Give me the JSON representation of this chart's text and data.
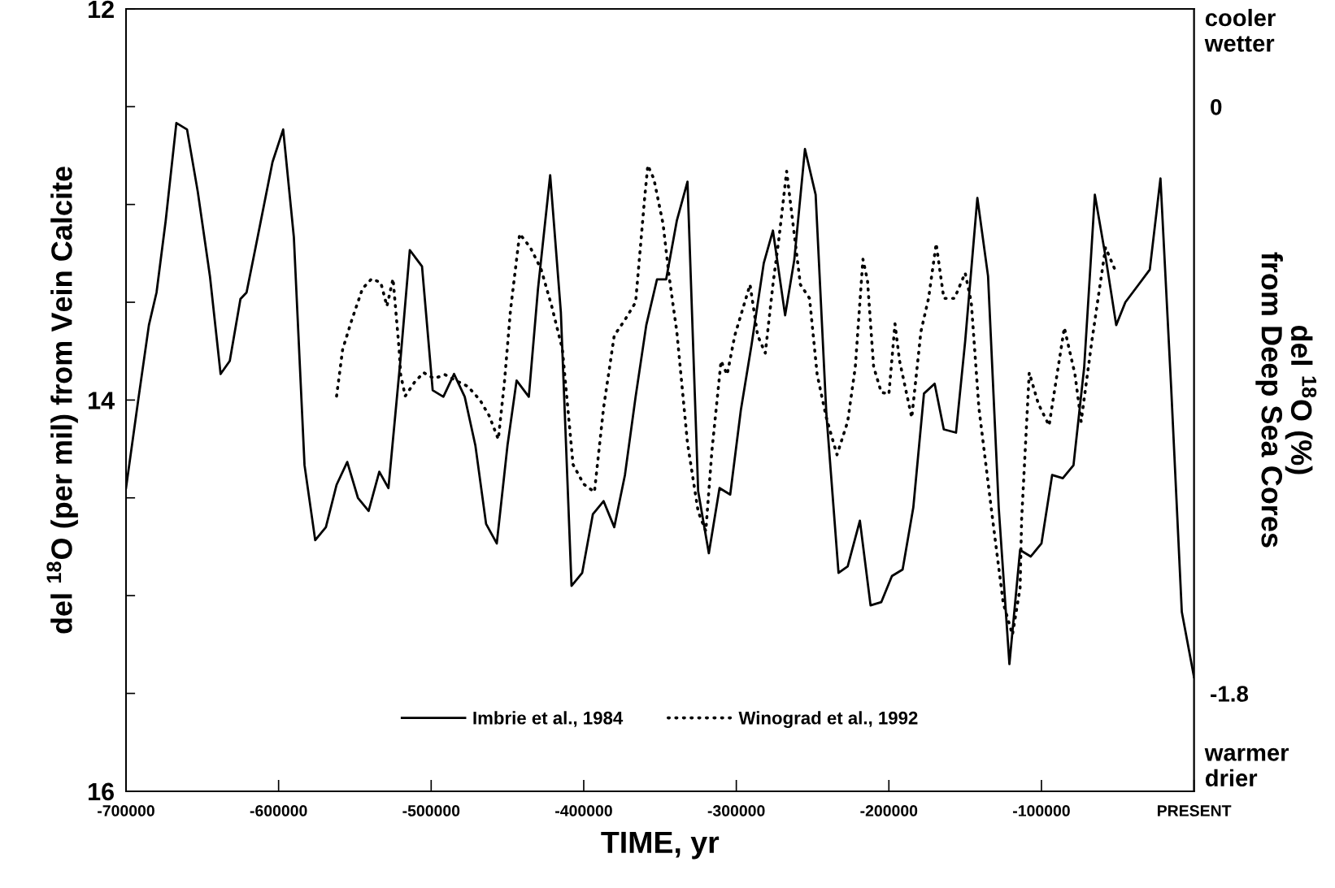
{
  "chart_data": {
    "type": "line",
    "xlabel": "TIME, yr",
    "ylabel": "del $^{18}$O (per mil) from Vein Calcite",
    "y2label": "del $^{18}$O (%)\nfrom Deep Sea Cores",
    "annotations": [
      "cooler\nwetter",
      "warmer\ndrier"
    ],
    "xlim": [
      -700000,
      0
    ],
    "xticks": [
      -700000,
      -600000,
      -500000,
      -400000,
      -300000,
      -200000,
      -100000,
      {
        "value": 0,
        "label": "PRESENT"
      }
    ],
    "ylim": [
      16,
      12
    ],
    "yticks": [
      12,
      {
        "value": 12.5,
        "label": null
      },
      {
        "value": 13,
        "label": null
      },
      {
        "value": 13.5,
        "label": null
      },
      14,
      {
        "value": 14.5,
        "label": null
      },
      {
        "value": 15,
        "label": null
      },
      {
        "value": 15.5,
        "label": null
      },
      16
    ],
    "y2lim": [
      -2.1,
      0.3
    ],
    "y2ticks": [
      0,
      -1.8
    ],
    "grid": false,
    "legend": "bottom",
    "series": [
      {
        "name": "Imbrie et al., 1984",
        "color": "#000000",
        "axis": "y2",
        "line_style": "solid",
        "x": [
          -700000,
          -692000,
          -685000,
          -680000,
          -674000,
          -667000,
          -660000,
          -653000,
          -645000,
          -638000,
          -632000,
          -625000,
          -621000,
          -615000,
          -604000,
          -597000,
          -590000,
          -583000,
          -576000,
          -569000,
          -562000,
          -555000,
          -548000,
          -541000,
          -534000,
          -528000,
          -520000,
          -514000,
          -506000,
          -499000,
          -492000,
          -485000,
          -478000,
          -471000,
          -464000,
          -457000,
          -450000,
          -444000,
          -436000,
          -430000,
          -422000,
          -415000,
          -408000,
          -401000,
          -394000,
          -387000,
          -380000,
          -373000,
          -366000,
          -359000,
          -352000,
          -346000,
          -339000,
          -332000,
          -325000,
          -318000,
          -311000,
          -304000,
          -297000,
          -290000,
          -282000,
          -276000,
          -268000,
          -262000,
          -255000,
          -248000,
          -241000,
          -233000,
          -227000,
          -219000,
          -212000,
          -205000,
          -198000,
          -191000,
          -184000,
          -177000,
          -170000,
          -164000,
          -156000,
          -150000,
          -142000,
          -135000,
          -128000,
          -121000,
          -114000,
          -107000,
          -100000,
          -93000,
          -86000,
          -79000,
          -72000,
          -65000,
          -58000,
          -51000,
          -45000,
          -37000,
          -29000,
          -22000,
          -15000,
          -8000,
          0
        ],
        "values": [
          -1.17,
          -0.9,
          -0.67,
          -0.57,
          -0.35,
          -0.05,
          -0.07,
          -0.26,
          -0.52,
          -0.82,
          -0.78,
          -0.59,
          -0.57,
          -0.43,
          -0.17,
          -0.07,
          -0.4,
          -1.1,
          -1.33,
          -1.29,
          -1.16,
          -1.09,
          -1.2,
          -1.24,
          -1.12,
          -1.17,
          -0.77,
          -0.44,
          -0.49,
          -0.87,
          -0.89,
          -0.82,
          -0.89,
          -1.04,
          -1.28,
          -1.34,
          -1.04,
          -0.84,
          -0.89,
          -0.56,
          -0.21,
          -0.63,
          -1.47,
          -1.43,
          -1.25,
          -1.21,
          -1.29,
          -1.13,
          -0.89,
          -0.67,
          -0.53,
          -0.53,
          -0.35,
          -0.23,
          -1.18,
          -1.37,
          -1.17,
          -1.19,
          -0.93,
          -0.73,
          -0.48,
          -0.38,
          -0.64,
          -0.47,
          -0.13,
          -0.27,
          -0.94,
          -1.43,
          -1.41,
          -1.27,
          -1.53,
          -1.52,
          -1.44,
          -1.42,
          -1.23,
          -0.88,
          -0.85,
          -0.99,
          -1.0,
          -0.72,
          -0.28,
          -0.52,
          -1.23,
          -1.71,
          -1.36,
          -1.38,
          -1.34,
          -1.13,
          -1.14,
          -1.1,
          -0.8,
          -0.27,
          -0.46,
          -0.67,
          -0.6,
          -0.55,
          -0.5,
          -0.22,
          -0.86,
          -1.55,
          -1.75
        ]
      },
      {
        "name": "Winograd et al., 1992",
        "color": "#000000",
        "line_style": "dotted",
        "x": [
          -562000,
          -558000,
          -552000,
          -545000,
          -539000,
          -533000,
          -529000,
          -525000,
          -521000,
          -520000,
          -517000,
          -511000,
          -505000,
          -498000,
          -491000,
          -484000,
          -476000,
          -468000,
          -462000,
          -456000,
          -452000,
          -448000,
          -442000,
          -435000,
          -428000,
          -421000,
          -414000,
          -407000,
          -400000,
          -393000,
          -387000,
          -380000,
          -373000,
          -366000,
          -360000,
          -358000,
          -354000,
          -348000,
          -344000,
          -339000,
          -332000,
          -325000,
          -320000,
          -316000,
          -310000,
          -306000,
          -301000,
          -291000,
          -286000,
          -281000,
          -276000,
          -272000,
          -267000,
          -265000,
          -258000,
          -252000,
          -247000,
          -241000,
          -234000,
          -227000,
          -222000,
          -217000,
          -214000,
          -210000,
          -205000,
          -200000,
          -196000,
          -193000,
          -185000,
          -179000,
          -174000,
          -169000,
          -164000,
          -157000,
          -150000,
          -146000,
          -141000,
          -132000,
          -125000,
          -119000,
          -114000,
          -113000,
          -108000,
          -102000,
          -95000,
          -85000,
          -78000,
          -74000,
          -67000,
          -58000,
          -52000
        ],
        "values": [
          13.98,
          13.74,
          13.59,
          13.43,
          13.38,
          13.4,
          13.52,
          13.38,
          13.74,
          13.87,
          13.98,
          13.91,
          13.86,
          13.89,
          13.87,
          13.9,
          13.93,
          14.0,
          14.08,
          14.2,
          13.91,
          13.54,
          13.15,
          13.22,
          13.33,
          13.52,
          13.74,
          14.33,
          14.43,
          14.47,
          14.04,
          13.67,
          13.59,
          13.5,
          12.96,
          12.8,
          12.87,
          13.1,
          13.37,
          13.65,
          14.22,
          14.57,
          14.67,
          14.26,
          13.8,
          13.87,
          13.67,
          13.41,
          13.67,
          13.76,
          13.41,
          13.17,
          12.83,
          12.96,
          13.41,
          13.48,
          13.87,
          14.09,
          14.28,
          14.11,
          13.83,
          13.28,
          13.39,
          13.83,
          13.96,
          13.97,
          13.61,
          13.8,
          14.09,
          13.65,
          13.48,
          13.2,
          13.48,
          13.48,
          13.35,
          13.5,
          14.04,
          14.61,
          15.04,
          15.2,
          14.96,
          14.61,
          13.86,
          14.02,
          14.13,
          13.63,
          13.87,
          14.11,
          13.7,
          13.22,
          13.33
        ]
      }
    ]
  }
}
